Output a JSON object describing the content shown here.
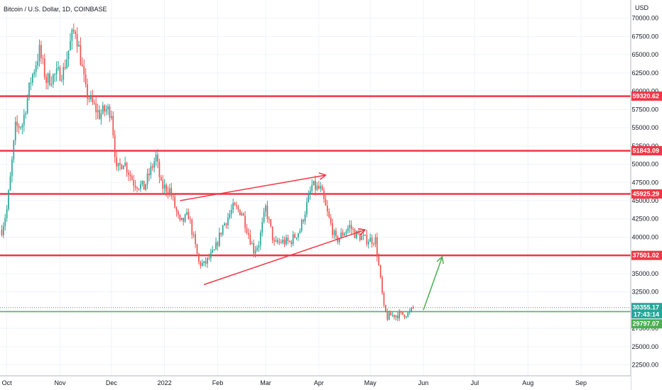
{
  "header": {
    "title": "Bitcoin / U.S. Dollar, 1D, COINBASE"
  },
  "chart_data": {
    "type": "candlestick",
    "title": "Bitcoin / U.S. Dollar, 1D, COINBASE",
    "currency_label": "USD",
    "colors": {
      "up": "#26a69a",
      "down": "#ef5350",
      "level": "#f23645",
      "support": "#4caf50",
      "grid": "#f0f3fa"
    },
    "x_ticks": [
      "Oct",
      "Nov",
      "Dec",
      "2022",
      "Feb",
      "Mar",
      "Apr",
      "May",
      "Jun",
      "Jul",
      "Aug",
      "Sep"
    ],
    "y_ticks": [
      22500,
      25000,
      27500,
      30000,
      32500,
      35000,
      37500,
      40000,
      42500,
      45000,
      47500,
      50000,
      52500,
      55000,
      57500,
      60000,
      62500,
      65000,
      67500,
      70000
    ],
    "y_tick_labels": [
      "22500.00",
      "25000.00",
      "27500.00",
      "30000.00",
      "32500.00",
      "35000.00",
      "37500.00",
      "40000.00",
      "42500.00",
      "45000.00",
      "47500.00",
      "50000.00",
      "52500.00",
      "55000.00",
      "57500.00",
      "60000.00",
      "62500.00",
      "65000.00",
      "67500.00",
      "70000.00"
    ],
    "ylim": [
      21000,
      72500
    ],
    "resistance_levels": [
      {
        "value": 59320.62,
        "label": "59320.62"
      },
      {
        "value": 51843.09,
        "label": "51843.09"
      },
      {
        "value": 45925.29,
        "label": "45925.29"
      },
      {
        "value": 37501.02,
        "label": "37501.02"
      }
    ],
    "support_level": {
      "value": 29797.07,
      "label": "29797.07"
    },
    "last_price": {
      "value": 30355.17,
      "label": "30355.17",
      "countdown": "17:43:14"
    },
    "price_path": [
      [
        "2021-09-28",
        41000
      ],
      [
        "2021-10-01",
        43800
      ],
      [
        "2021-10-03",
        48000
      ],
      [
        "2021-10-06",
        55000
      ],
      [
        "2021-10-10",
        55500
      ],
      [
        "2021-10-15",
        61500
      ],
      [
        "2021-10-20",
        65500
      ],
      [
        "2021-10-24",
        61500
      ],
      [
        "2021-10-28",
        62000
      ],
      [
        "2021-11-03",
        62800
      ],
      [
        "2021-11-08",
        67500
      ],
      [
        "2021-11-10",
        68500
      ],
      [
        "2021-11-13",
        64500
      ],
      [
        "2021-11-16",
        60000
      ],
      [
        "2021-11-20",
        58200
      ],
      [
        "2021-11-24",
        56800
      ],
      [
        "2021-11-28",
        57500
      ],
      [
        "2021-12-01",
        57200
      ],
      [
        "2021-12-04",
        49000
      ],
      [
        "2021-12-08",
        50500
      ],
      [
        "2021-12-14",
        47500
      ],
      [
        "2021-12-20",
        46800
      ],
      [
        "2021-12-27",
        51000
      ],
      [
        "2021-12-30",
        47000
      ],
      [
        "2022-01-04",
        46500
      ],
      [
        "2022-01-10",
        41800
      ],
      [
        "2022-01-15",
        43000
      ],
      [
        "2022-01-21",
        36500
      ],
      [
        "2022-01-24",
        36200
      ],
      [
        "2022-01-30",
        38000
      ],
      [
        "2022-02-04",
        41500
      ],
      [
        "2022-02-10",
        44000
      ],
      [
        "2022-02-15",
        43500
      ],
      [
        "2022-02-22",
        38200
      ],
      [
        "2022-02-25",
        39200
      ],
      [
        "2022-03-01",
        44000
      ],
      [
        "2022-03-06",
        39000
      ],
      [
        "2022-03-10",
        39400
      ],
      [
        "2022-03-15",
        39300
      ],
      [
        "2022-03-21",
        41000
      ],
      [
        "2022-03-28",
        47000
      ],
      [
        "2022-04-02",
        46500
      ],
      [
        "2022-04-06",
        43200
      ],
      [
        "2022-04-11",
        39500
      ],
      [
        "2022-04-19",
        41500
      ],
      [
        "2022-04-22",
        40500
      ],
      [
        "2022-04-28",
        39700
      ],
      [
        "2022-05-04",
        39600
      ],
      [
        "2022-05-06",
        36000
      ],
      [
        "2022-05-09",
        30200
      ],
      [
        "2022-05-11",
        29000
      ],
      [
        "2022-05-13",
        29300
      ],
      [
        "2022-05-20",
        29400
      ],
      [
        "2022-05-24",
        29600
      ],
      [
        "2022-05-26",
        30355.17
      ]
    ],
    "annotations": {
      "rising_channel_upper": [
        [
          "2022-01-10",
          45000
        ],
        [
          "2022-04-05",
          48500
        ]
      ],
      "rising_channel_lower": [
        [
          "2022-01-24",
          33500
        ],
        [
          "2022-04-28",
          41000
        ]
      ],
      "projection_arrow": [
        [
          "2022-06-01",
          30000
        ],
        [
          "2022-06-12",
          37300
        ]
      ]
    }
  }
}
